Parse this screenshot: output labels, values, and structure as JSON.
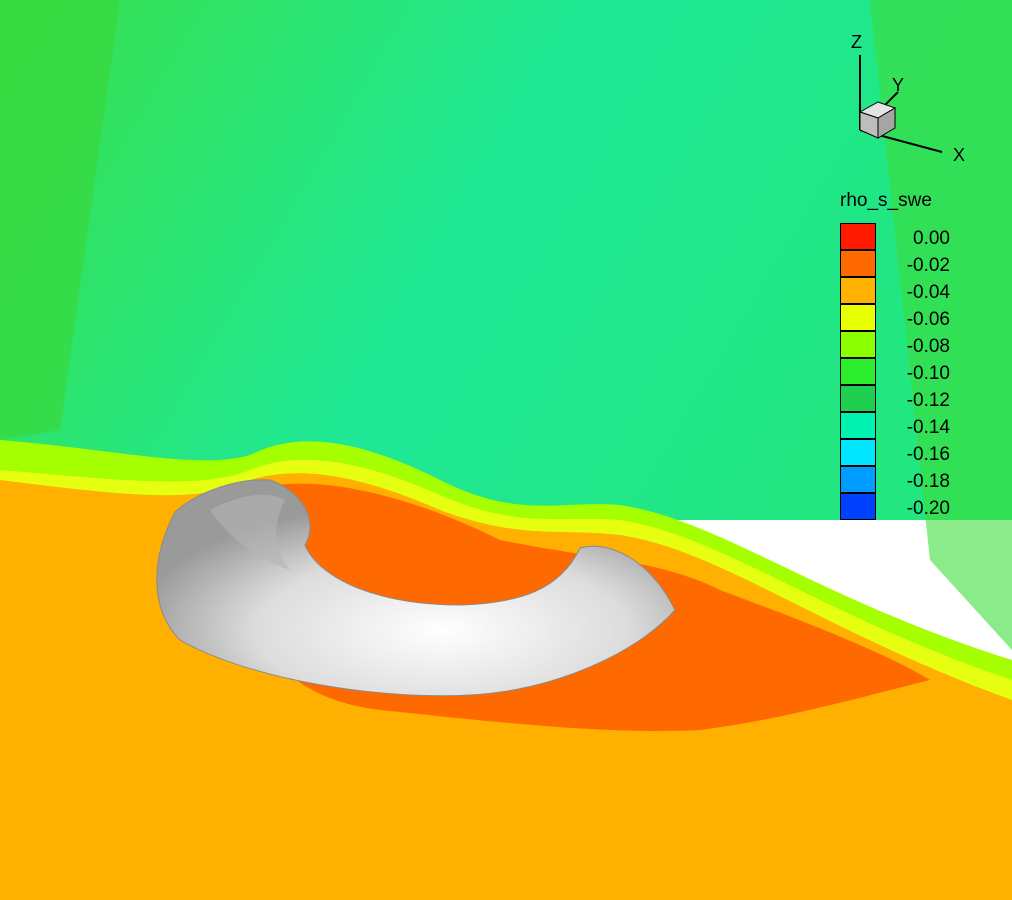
{
  "legend": {
    "title": "rho_s_swe",
    "entries": [
      {
        "label": "0.00",
        "color": "#ff1a00"
      },
      {
        "label": "-0.02",
        "color": "#ff6a00"
      },
      {
        "label": "-0.04",
        "color": "#ffb300"
      },
      {
        "label": "-0.06",
        "color": "#e8ff00"
      },
      {
        "label": "-0.08",
        "color": "#8cff00"
      },
      {
        "label": "-0.10",
        "color": "#2dee2d"
      },
      {
        "label": "-0.12",
        "color": "#1fd050"
      },
      {
        "label": "-0.14",
        "color": "#00f2b0"
      },
      {
        "label": "-0.16",
        "color": "#00e6ff"
      },
      {
        "label": "-0.18",
        "color": "#009dff"
      },
      {
        "label": "-0.20",
        "color": "#0040ff"
      }
    ]
  },
  "axes": {
    "x_label": "X",
    "y_label": "Y",
    "z_label": "Z"
  },
  "colors": {
    "upper_field": "#1ee37a",
    "upper_field_dark": "#22d34a",
    "transition_yellow": "#e0ff10",
    "transition_orange": "#ffb300",
    "lower_field": "#ffb000",
    "deposit": "#ff6a00",
    "obstacle": "#d8d8d8"
  }
}
